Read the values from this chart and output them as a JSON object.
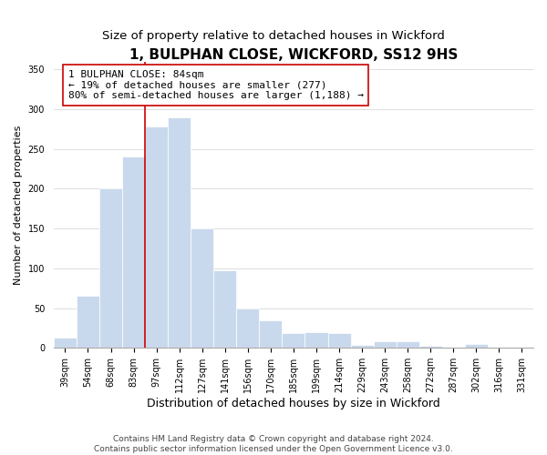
{
  "title": "1, BULPHAN CLOSE, WICKFORD, SS12 9HS",
  "subtitle": "Size of property relative to detached houses in Wickford",
  "xlabel": "Distribution of detached houses by size in Wickford",
  "ylabel": "Number of detached properties",
  "bar_labels": [
    "39sqm",
    "54sqm",
    "68sqm",
    "83sqm",
    "97sqm",
    "112sqm",
    "127sqm",
    "141sqm",
    "156sqm",
    "170sqm",
    "185sqm",
    "199sqm",
    "214sqm",
    "229sqm",
    "243sqm",
    "258sqm",
    "272sqm",
    "287sqm",
    "302sqm",
    "316sqm",
    "331sqm"
  ],
  "bar_values": [
    13,
    65,
    200,
    240,
    278,
    290,
    150,
    97,
    49,
    35,
    18,
    20,
    18,
    4,
    8,
    8,
    2,
    0,
    5,
    0,
    0
  ],
  "bar_color": "#c9d9ed",
  "bar_edge_color": "#ffffff",
  "vline_color": "#cc0000",
  "vline_x_index": 3,
  "annotation_text": "1 BULPHAN CLOSE: 84sqm\n← 19% of detached houses are smaller (277)\n80% of semi-detached houses are larger (1,188) →",
  "annotation_box_edgecolor": "#cc0000",
  "ylim": [
    0,
    360
  ],
  "yticks": [
    0,
    50,
    100,
    150,
    200,
    250,
    300,
    350
  ],
  "footer1": "Contains HM Land Registry data © Crown copyright and database right 2024.",
  "footer2": "Contains public sector information licensed under the Open Government Licence v3.0.",
  "title_fontsize": 11,
  "subtitle_fontsize": 9.5,
  "xlabel_fontsize": 9,
  "ylabel_fontsize": 8,
  "tick_fontsize": 7,
  "annotation_fontsize": 8,
  "footer_fontsize": 6.5
}
